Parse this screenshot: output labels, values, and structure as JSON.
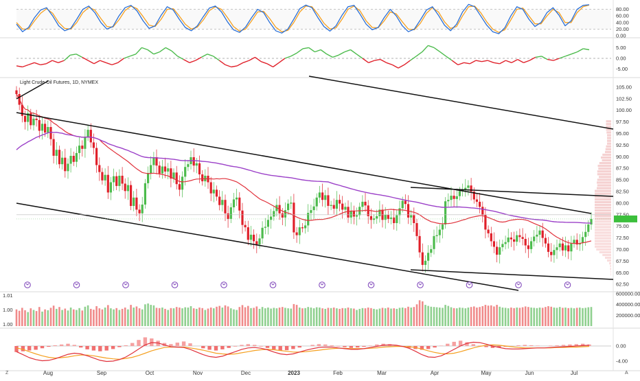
{
  "title": "Light Crude Oil Futures, 1D, NYMEX",
  "time_axis": {
    "labels": [
      "Aug",
      "Sep",
      "Oct",
      "Nov",
      "Dec",
      "2023",
      "Feb",
      "Mar",
      "Apr",
      "May",
      "Jun",
      "Jul"
    ],
    "bold_label": "2023",
    "start_date": "2022-07-06",
    "end_date": "2023-07-13"
  },
  "corner_left": "Z",
  "corner_right": "A",
  "colors": {
    "up": "#4cbb4c",
    "down": "#e0202a",
    "sma_short": "#e0303a",
    "sma_long": "#9b40c8",
    "stoch_k": "#2a6fd6",
    "stoch_d": "#f5a020",
    "macd_line": "#e0303a",
    "macd_signal": "#f5a020",
    "trendline": "#111111",
    "event_icon": "#7a3fb8"
  },
  "chart_data": [
    {
      "type": "line",
      "panel": "stochastic",
      "y_ticks": [
        "80.00",
        "60.00",
        "40.00",
        "20.00",
        "0.00"
      ],
      "ylim": [
        0,
        100
      ],
      "dashed_levels": [
        80,
        20
      ],
      "series": [
        {
          "values": [
            35,
            12,
            25,
            55,
            78,
            85,
            60,
            30,
            15,
            22,
            50,
            80,
            90,
            70,
            40,
            20,
            28,
            60,
            85,
            92,
            75,
            45,
            22,
            30,
            62,
            88,
            78,
            50,
            25,
            15,
            30,
            58,
            84,
            90,
            72,
            42,
            18,
            10,
            26,
            55,
            80,
            70,
            40,
            15,
            8,
            20,
            50,
            82,
            93,
            85,
            55,
            28,
            14,
            30,
            62,
            88,
            92,
            65,
            35,
            18,
            25,
            55,
            80,
            60,
            30,
            12,
            20,
            48,
            78,
            88,
            62,
            32,
            15,
            35,
            72,
            95,
            88,
            60,
            32,
            12,
            6,
            24,
            60,
            88,
            80,
            50,
            28,
            40,
            70,
            85,
            62,
            30,
            45,
            80,
            92,
            94
          ]
        },
        {
          "values": [
            40,
            20,
            20,
            45,
            68,
            82,
            68,
            40,
            22,
            20,
            40,
            70,
            86,
            78,
            52,
            28,
            26,
            48,
            76,
            90,
            82,
            58,
            32,
            28,
            50,
            80,
            82,
            60,
            35,
            20,
            26,
            48,
            76,
            88,
            80,
            55,
            28,
            14,
            20,
            45,
            72,
            74,
            52,
            26,
            12,
            16,
            40,
            72,
            90,
            88,
            65,
            38,
            20,
            24,
            50,
            80,
            90,
            75,
            45,
            25,
            24,
            45,
            72,
            66,
            42,
            20,
            18,
            38,
            68,
            85,
            72,
            42,
            22,
            28,
            60,
            88,
            90,
            70,
            42,
            20,
            10,
            18,
            48,
            80,
            84,
            60,
            36,
            36,
            60,
            80,
            70,
            40,
            40,
            70,
            88,
            93
          ]
        }
      ]
    },
    {
      "type": "line",
      "panel": "momentum",
      "y_ticks": [
        "5.00",
        "0.00",
        "-5.00"
      ],
      "ylim": [
        -8,
        8
      ],
      "zero_line": true,
      "values": [
        -3.5,
        -4,
        -3,
        -2,
        -3,
        -2.5,
        -1,
        -2,
        -1,
        1.5,
        2,
        0.5,
        -1,
        -2.5,
        -1,
        -2,
        -3,
        -2,
        0,
        1,
        2,
        5,
        4,
        2,
        3,
        5,
        3.5,
        1,
        -0.5,
        -2,
        -1,
        0.5,
        2,
        1,
        -1,
        -3,
        -4,
        -3.5,
        -2,
        -1,
        0.5,
        -1.5,
        -2.5,
        -4,
        -2,
        0,
        1,
        2.5,
        4.5,
        5,
        3,
        4,
        2,
        0.5,
        1.5,
        3,
        4,
        2,
        0,
        -2,
        -1,
        -0.5,
        -2,
        -3,
        -4.5,
        -3,
        -1,
        1,
        3,
        6,
        5,
        3,
        1,
        -1,
        -3,
        -2,
        -2.5,
        -1,
        -1.5,
        -1,
        -2,
        -2.5,
        -1,
        -2,
        -0.5,
        -2,
        -1,
        0.5,
        1,
        -0.5,
        -1,
        0,
        1,
        2,
        3,
        4.5,
        4
      ]
    },
    {
      "type": "candlestick",
      "panel": "price",
      "title": "Light Crude Oil Futures, 1D, NYMEX",
      "y_ticks": [
        "105.00",
        "102.50",
        "100.00",
        "97.50",
        "95.00",
        "92.50",
        "90.00",
        "87.50",
        "85.00",
        "82.50",
        "80.00",
        "77.50",
        "75.00",
        "72.50",
        "70.00",
        "67.50",
        "65.00",
        "62.50"
      ],
      "ylim": [
        61.5,
        107.5
      ],
      "grid": false,
      "close_series": [
        103.5,
        101.2,
        98.8,
        97.5,
        99.4,
        96.8,
        98.2,
        97.9,
        95.6,
        97.1,
        95.2,
        96.4,
        93.8,
        90.2,
        91.5,
        88.4,
        89.8,
        86.9,
        88.5,
        90.2,
        88.9,
        90.8,
        92.4,
        91.7,
        94.3,
        95.8,
        93.1,
        91.9,
        88.2,
        86.7,
        84.9,
        86.1,
        82.3,
        84.5,
        85.8,
        83.7,
        85.9,
        84.2,
        82.6,
        83.9,
        79.4,
        81.2,
        78.6,
        77.8,
        79.7,
        84.3,
        86.5,
        88.2,
        89.9,
        88.1,
        86.4,
        87.9,
        86.8,
        87.5,
        85.3,
        86.6,
        84.1,
        82.9,
        85.7,
        87.8,
        88.4,
        89.9,
        88.1,
        88.6,
        86.2,
        84.7,
        85.9,
        84.5,
        82.1,
        82.9,
        81.4,
        79.6,
        80.7,
        77.8,
        76.6,
        79.1,
        80.8,
        81.2,
        78.4,
        75.3,
        74.8,
        72.1,
        73.2,
        71.8,
        71.1,
        72.4,
        74.7,
        74.9,
        76.4,
        77.1,
        78.3,
        79.6,
        77.8,
        76.9,
        78.5,
        79.9,
        80.1,
        73.7,
        73.1,
        74.8,
        74.6,
        75.2,
        77.9,
        78.5,
        79.3,
        81.2,
        82.3,
        80.7,
        81.7,
        79.4,
        79.6,
        78.8,
        80.7,
        79.9,
        78.6,
        79.2,
        76.9,
        78.3,
        77.1,
        77.4,
        79.2,
        80.3,
        79.5,
        77.2,
        76.4,
        76.7,
        77.2,
        78.6,
        76.4,
        77.5,
        76.6,
        76.9,
        75.7,
        77.4,
        78.9,
        80.5,
        79.8,
        76.9,
        77.4,
        75.7,
        72.9,
        69.4,
        66.7,
        67.6,
        69.3,
        70.1,
        72.9,
        73.1,
        74.3,
        75.4,
        80.4,
        80.7,
        81.6,
        80.9,
        81.5,
        82.6,
        82.8,
        83.3,
        83.8,
        82.5,
        80.8,
        80.3,
        79.2,
        77.5,
        74.3,
        73.5,
        71.8,
        70.6,
        68.9,
        70.5,
        71.2,
        71.6,
        72.6,
        72.2,
        71.7,
        73.1,
        72.7,
        72.3,
        70.9,
        70.1,
        71.8,
        72.8,
        73.2,
        74.1,
        72.5,
        71.3,
        69.5,
        68.8,
        69.9,
        70.5,
        71.3,
        69.8,
        70.9,
        69.6,
        71.3,
        72.1,
        71.1,
        71.4,
        72.7,
        73.8,
        75.4,
        76.6
      ]
    },
    {
      "type": "bar",
      "panel": "volume",
      "y_ticks_right": [
        "600000.00",
        "400000.00",
        "200000.00"
      ],
      "y_ticks_left": [
        "1.01",
        "1.00",
        "1.00"
      ],
      "ylim": [
        0,
        600000
      ],
      "values": [
        310000,
        285000,
        340000,
        295000,
        260000,
        330000,
        300000,
        280000,
        355000,
        270000,
        310000,
        295000,
        340000,
        380000,
        320000,
        355000,
        300000,
        325000,
        290000,
        345000,
        310000,
        300000,
        335000,
        290000,
        360000,
        385000,
        320000,
        305000,
        370000,
        330000,
        310000,
        345000,
        390000,
        330000,
        310000,
        335000,
        300000,
        320000,
        345000,
        310000,
        395000,
        345000,
        365000,
        330000,
        310000,
        405000,
        420000,
        395000,
        385000,
        340000,
        335000,
        345000,
        320000,
        300000,
        335000,
        330000,
        355000,
        345000,
        330000,
        350000,
        345000,
        370000,
        330000,
        320000,
        345000,
        335000,
        300000,
        325000,
        345000,
        330000,
        360000,
        375000,
        345000,
        385000,
        365000,
        330000,
        310000,
        300000,
        355000,
        390000,
        350000,
        375000,
        335000,
        340000,
        365000,
        320000,
        355000,
        330000,
        345000,
        325000,
        340000,
        330000,
        345000,
        355000,
        340000,
        330000,
        325000,
        410000,
        395000,
        345000,
        330000,
        335000,
        355000,
        345000,
        330000,
        350000,
        345000,
        330000,
        320000,
        340000,
        335000,
        345000,
        330000,
        320000,
        335000,
        330000,
        345000,
        330000,
        325000,
        300000,
        320000,
        335000,
        330000,
        345000,
        335000,
        320000,
        310000,
        325000,
        340000,
        330000,
        345000,
        325000,
        330000,
        320000,
        340000,
        345000,
        335000,
        360000,
        345000,
        355000,
        405000,
        480000,
        460000,
        395000,
        375000,
        360000,
        355000,
        350000,
        345000,
        340000,
        395000,
        375000,
        350000,
        335000,
        330000,
        345000,
        340000,
        330000,
        345000,
        355000,
        365000,
        345000,
        355000,
        370000,
        395000,
        380000,
        385000,
        365000,
        395000,
        360000,
        345000,
        340000,
        330000,
        345000,
        335000,
        345000,
        340000,
        350000,
        365000,
        355000,
        345000,
        340000,
        335000,
        345000,
        340000,
        355000,
        370000,
        360000,
        345000,
        340000,
        355000,
        340000,
        345000,
        335000,
        340000,
        330000,
        340000,
        345000,
        335000,
        340000,
        350000,
        355000
      ]
    },
    {
      "type": "bar",
      "panel": "macd",
      "y_ticks": [
        "0.00",
        "-4.00"
      ],
      "ylim": [
        -6,
        4
      ],
      "histogram": [
        -1.6,
        -1.4,
        -1.2,
        -1.0,
        -0.6,
        -0.2,
        0.2,
        0.4,
        0.6,
        0.3,
        -0.4,
        -0.9,
        -1.2,
        -1.4,
        -1.2,
        -0.8,
        -0.3,
        0.2,
        0.8,
        1.6,
        2.3,
        2.0,
        1.4,
        0.8,
        0.5,
        0.9,
        1.2,
        0.7,
        0.0,
        -0.6,
        -1.0,
        -1.2,
        -0.9,
        -0.5,
        -0.1,
        0.3,
        0.5,
        0.3,
        -0.1,
        -0.5,
        -0.9,
        -1.2,
        -1.1,
        -0.8,
        -0.4,
        0.0,
        0.3,
        0.5,
        0.4,
        0.2,
        -0.1,
        -0.3,
        -0.5,
        -0.4,
        -0.2,
        0.1,
        0.4,
        0.6,
        0.5,
        0.2,
        -0.2,
        -0.5,
        -0.8,
        -1.0,
        -0.8,
        -0.4,
        0.1,
        0.6,
        1.1,
        1.4,
        1.0,
        0.5,
        0.1,
        -0.3,
        -0.5,
        -0.4,
        -0.2,
        0.0,
        0.2,
        0.3,
        0.2,
        0.1,
        0.0,
        0.1,
        0.2,
        0.3,
        0.4,
        0.5,
        0.6,
        0.4
      ],
      "series": [
        {
          "values": [
            -1.5,
            -2.3,
            -3.1,
            -3.6,
            -3.9,
            -3.8,
            -3.4,
            -2.8,
            -2.2,
            -1.9,
            -2.1,
            -2.6,
            -3.2,
            -3.8,
            -4.1,
            -4.0,
            -3.6,
            -2.9,
            -1.9,
            -0.8,
            0.3,
            0.9,
            0.8,
            0.3,
            -0.2,
            -0.3,
            -0.4,
            -0.9,
            -1.6,
            -2.3,
            -2.8,
            -3.0,
            -2.7,
            -2.1,
            -1.5,
            -0.9,
            -0.5,
            -0.4,
            -0.6,
            -1.0,
            -1.6,
            -2.1,
            -2.3,
            -2.1,
            -1.6,
            -1.1,
            -0.7,
            -0.4,
            -0.3,
            -0.3,
            -0.5,
            -0.7,
            -0.9,
            -0.9,
            -0.7,
            -0.4,
            -0.1,
            0.2,
            0.3,
            0.2,
            -0.1,
            -0.6,
            -1.4,
            -2.3,
            -2.9,
            -3.0,
            -2.6,
            -1.8,
            -0.9,
            0.0,
            0.7,
            1.0,
            0.9,
            0.5,
            0.0,
            -0.4,
            -0.7,
            -0.8,
            -0.8,
            -0.7,
            -0.6,
            -0.5,
            -0.5,
            -0.4,
            -0.3,
            -0.2,
            -0.1,
            0.0,
            0.1,
            0.2
          ]
        },
        {
          "values": [
            -0.5,
            -0.9,
            -1.5,
            -2.1,
            -2.6,
            -3.0,
            -3.2,
            -3.1,
            -2.9,
            -2.6,
            -2.4,
            -2.4,
            -2.6,
            -2.9,
            -3.2,
            -3.4,
            -3.5,
            -3.3,
            -3.0,
            -2.5,
            -1.9,
            -1.3,
            -0.8,
            -0.4,
            -0.3,
            -0.3,
            -0.3,
            -0.5,
            -0.8,
            -1.1,
            -1.5,
            -1.9,
            -2.1,
            -2.2,
            -2.1,
            -1.8,
            -1.5,
            -1.2,
            -1.0,
            -0.9,
            -1.0,
            -1.2,
            -1.4,
            -1.6,
            -1.6,
            -1.5,
            -1.3,
            -1.1,
            -0.9,
            -0.7,
            -0.6,
            -0.6,
            -0.7,
            -0.7,
            -0.7,
            -0.6,
            -0.5,
            -0.3,
            -0.2,
            -0.1,
            -0.1,
            -0.2,
            -0.4,
            -0.8,
            -1.3,
            -1.7,
            -2.0,
            -2.1,
            -1.9,
            -1.5,
            -1.0,
            -0.5,
            -0.1,
            0.2,
            0.3,
            0.2,
            0.0,
            -0.2,
            -0.4,
            -0.5,
            -0.5,
            -0.5,
            -0.5,
            -0.5,
            -0.4,
            -0.4,
            -0.3,
            -0.3,
            -0.2,
            -0.1
          ]
        }
      ]
    }
  ]
}
